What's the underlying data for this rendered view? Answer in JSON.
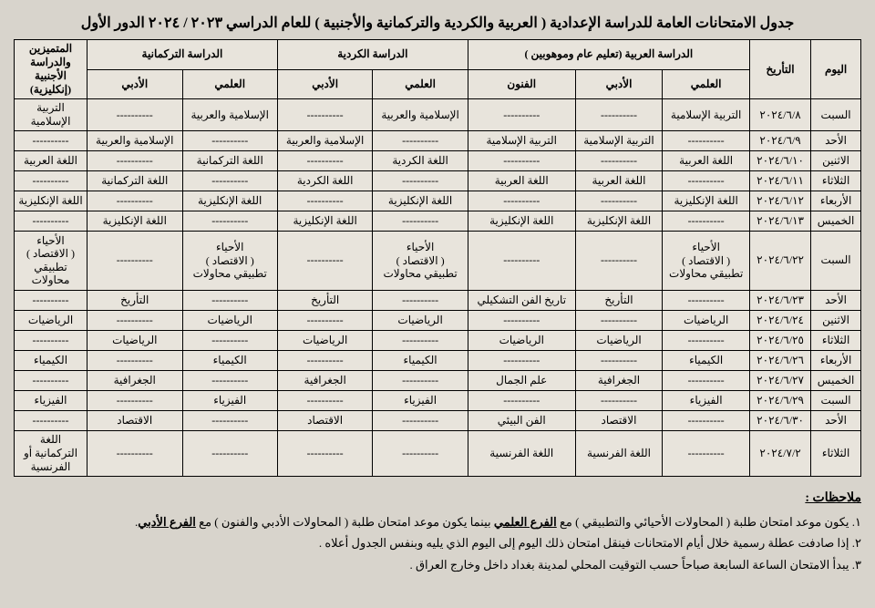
{
  "title": "جدول الامتحانات العامة للدراسة الإعدادية ( العربية والكردية والتركمانية والأجنبية ) للعام الدراسي ٢٠٢٣ / ٢٠٢٤ الدور الأول",
  "headers": {
    "day": "اليوم",
    "date": "التأريخ",
    "arabic_group": "الدراسة العربية (تعليم عام وموهوبين )",
    "kurdish_group": "الدراسة الكردية",
    "turkmen_group": "الدراسة التركمانية",
    "foreign_group": "المتميزين والدراسة الأجنبية (إنكليزية)",
    "sci": "العلمي",
    "lit": "الأدبي",
    "arts": "الفنون"
  },
  "rows": [
    {
      "day": "السبت",
      "date": "٢٠٢٤/٦/٨",
      "a_sci": "التربية الإسلامية",
      "a_lit": "----------",
      "a_art": "----------",
      "k_sci": "الإسلامية والعربية",
      "k_lit": "----------",
      "t_sci": "الإسلامية والعربية",
      "t_lit": "----------",
      "f": "التربية الإسلامية"
    },
    {
      "day": "الأحد",
      "date": "٢٠٢٤/٦/٩",
      "a_sci": "----------",
      "a_lit": "التربية الإسلامية",
      "a_art": "التربية الإسلامية",
      "k_sci": "----------",
      "k_lit": "الإسلامية والعربية",
      "t_sci": "----------",
      "t_lit": "الإسلامية والعربية",
      "f": "----------"
    },
    {
      "day": "الاثنين",
      "date": "٢٠٢٤/٦/١٠",
      "a_sci": "اللغة العربية",
      "a_lit": "----------",
      "a_art": "----------",
      "k_sci": "اللغة الكردية",
      "k_lit": "----------",
      "t_sci": "اللغة التركمانية",
      "t_lit": "----------",
      "f": "اللغة العربية"
    },
    {
      "day": "الثلاثاء",
      "date": "٢٠٢٤/٦/١١",
      "a_sci": "----------",
      "a_lit": "اللغة العربية",
      "a_art": "اللغة العربية",
      "k_sci": "----------",
      "k_lit": "اللغة الكردية",
      "t_sci": "----------",
      "t_lit": "اللغة التركمانية",
      "f": "----------"
    },
    {
      "day": "الأربعاء",
      "date": "٢٠٢٤/٦/١٢",
      "a_sci": "اللغة الإنكليزية",
      "a_lit": "----------",
      "a_art": "----------",
      "k_sci": "اللغة الإنكليزية",
      "k_lit": "----------",
      "t_sci": "اللغة الإنكليزية",
      "t_lit": "----------",
      "f": "اللغة الإنكليزية"
    },
    {
      "day": "الخميس",
      "date": "٢٠٢٤/٦/١٣",
      "a_sci": "----------",
      "a_lit": "اللغة الإنكليزية",
      "a_art": "اللغة الإنكليزية",
      "k_sci": "----------",
      "k_lit": "اللغة الإنكليزية",
      "t_sci": "----------",
      "t_lit": "اللغة الإنكليزية",
      "f": "----------"
    },
    {
      "day": "السبت",
      "date": "٢٠٢٤/٦/٢٢",
      "a_sci": "الأحياء<br>( الاقتصاد )<br>تطبيقي محاولات",
      "a_lit": "----------",
      "a_art": "----------",
      "k_sci": "الأحياء<br>( الاقتصاد )<br>تطبيقي محاولات",
      "k_lit": "----------",
      "t_sci": "الأحياء<br>( الاقتصاد )<br>تطبيقي محاولات",
      "t_lit": "----------",
      "f": "الأحياء<br>( الاقتصاد )<br>تطبيقي محاولات"
    },
    {
      "day": "الأحد",
      "date": "٢٠٢٤/٦/٢٣",
      "a_sci": "----------",
      "a_lit": "التأريخ",
      "a_art": "تاريخ الفن التشكيلي",
      "k_sci": "----------",
      "k_lit": "التأريخ",
      "t_sci": "----------",
      "t_lit": "التأريخ",
      "f": "----------"
    },
    {
      "day": "الاثنين",
      "date": "٢٠٢٤/٦/٢٤",
      "a_sci": "الرياضيات",
      "a_lit": "----------",
      "a_art": "----------",
      "k_sci": "الرياضيات",
      "k_lit": "----------",
      "t_sci": "الرياضيات",
      "t_lit": "----------",
      "f": "الرياضيات"
    },
    {
      "day": "الثلاثاء",
      "date": "٢٠٢٤/٦/٢٥",
      "a_sci": "----------",
      "a_lit": "الرياضيات",
      "a_art": "الرياضيات",
      "k_sci": "----------",
      "k_lit": "الرياضيات",
      "t_sci": "----------",
      "t_lit": "الرياضيات",
      "f": "----------"
    },
    {
      "day": "الأربعاء",
      "date": "٢٠٢٤/٦/٢٦",
      "a_sci": "الكيمياء",
      "a_lit": "----------",
      "a_art": "----------",
      "k_sci": "الكيمياء",
      "k_lit": "----------",
      "t_sci": "الكيمياء",
      "t_lit": "----------",
      "f": "الكيمياء"
    },
    {
      "day": "الخميس",
      "date": "٢٠٢٤/٦/٢٧",
      "a_sci": "----------",
      "a_lit": "الجغرافية",
      "a_art": "علم الجمال",
      "k_sci": "----------",
      "k_lit": "الجغرافية",
      "t_sci": "----------",
      "t_lit": "الجغرافية",
      "f": "----------"
    },
    {
      "day": "السبت",
      "date": "٢٠٢٤/٦/٢٩",
      "a_sci": "الفيزياء",
      "a_lit": "----------",
      "a_art": "----------",
      "k_sci": "الفيزياء",
      "k_lit": "----------",
      "t_sci": "الفيزياء",
      "t_lit": "----------",
      "f": "الفيزياء"
    },
    {
      "day": "الأحد",
      "date": "٢٠٢٤/٦/٣٠",
      "a_sci": "----------",
      "a_lit": "الاقتصاد",
      "a_art": "الفن البيئي",
      "k_sci": "----------",
      "k_lit": "الاقتصاد",
      "t_sci": "----------",
      "t_lit": "الاقتصاد",
      "f": "----------"
    },
    {
      "day": "الثلاثاء",
      "date": "٢٠٢٤/٧/٢",
      "a_sci": "----------",
      "a_lit": "اللغة الفرنسية",
      "a_art": "اللغة الفرنسية",
      "k_sci": "----------",
      "k_lit": "----------",
      "t_sci": "----------",
      "t_lit": "----------",
      "f": "اللغة التركمانية أو الفرنسية"
    }
  ],
  "notes_title": "ملاحظات :",
  "notes": [
    "١. يكون موعد امتحان طلبة ( المحاولات الأحيائي والتطبيقي ) مع <span class='u'>الفرع العلمي</span> بينما يكون موعد امتحان طلبة ( المحاولات الأدبي والفنون ) مع <span class='u'>الفرع الأدبي</span>.",
    "٢. إذا صادفت عطلة رسمية خلال أيام الامتحانات فينقل امتحان ذلك اليوم إلى اليوم الذي يليه وبنفس الجدول أعلاه .",
    "٣. يبدأ الامتحان الساعة السابعة صباحاً حسب التوقيت المحلي لمدينة بغداد داخل وخارج العراق ."
  ],
  "colors": {
    "bg": "#d8d4cc",
    "table_bg": "#e8e4dc",
    "border": "#000000",
    "text": "#000000"
  }
}
